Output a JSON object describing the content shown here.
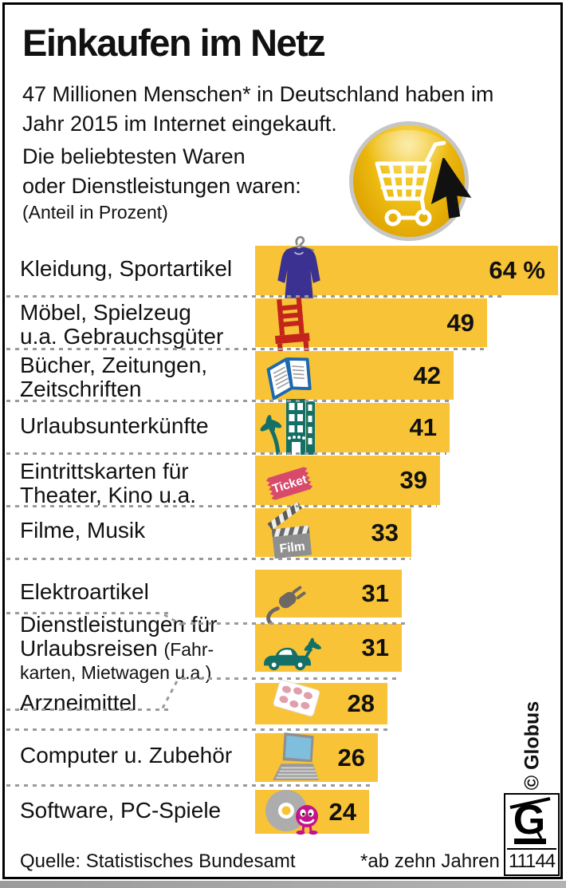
{
  "palette": {
    "bar_yellow": "#F8C337",
    "dotted_gray": "#9A9A9A",
    "frame_black": "#000000",
    "badge_gold": "#E5AE00",
    "badge_ring_gray": "#C6C6C6",
    "shirt_violet": "#3A3191",
    "chair_red": "#C3241B",
    "book_blue": "#1C69B0",
    "travel_teal": "#147067",
    "ticket_pink": "#D84A6B",
    "film_gray": "#8F8F8F",
    "plug_gray": "#6E6862",
    "pill_rose": "#DFA0AC",
    "laptop_blue": "#7FBEDC",
    "cd_gray": "#ADADAD",
    "smiley_magenta": "#C4148C"
  },
  "header": {
    "title": "Einkaufen im Netz",
    "intro_line1": "47 Millionen Menschen* in Deutschland haben im",
    "intro_line2": "Jahr 2015 im Internet eingekauft.",
    "sub_line1": "Die beliebtesten Waren",
    "sub_line2": "oder Dienstleistungen waren:",
    "sub_note": "(Anteil in Prozent)",
    "badge_icon": "shopping-cart-with-cursor"
  },
  "chart_data": {
    "type": "bar",
    "orientation": "horizontal",
    "title": "Einkaufen im Netz",
    "subtitle": "47 Millionen Menschen* in Deutschland haben im Jahr 2015 im Internet eingekauft. Die beliebtesten Waren oder Dienstleistungen waren:",
    "unit": "Anteil in Prozent",
    "categories": [
      "Kleidung, Sportartikel",
      "Möbel, Spielzeug u.a. Gebrauchsgüter",
      "Bücher, Zeitungen, Zeitschriften",
      "Urlaubsunterkünfte",
      "Eintrittskarten für Theater, Kino u.a.",
      "Filme, Musik",
      "Elektroartikel",
      "Dienstleistungen für Urlaubsreisen (Fahrkarten, Mietwagen u.a.)",
      "Arzneimittel",
      "Computer u. Zubehör",
      "Software, PC-Spiele"
    ],
    "values": [
      64,
      49,
      42,
      41,
      39,
      33,
      31,
      31,
      28,
      26,
      24
    ],
    "value_labels": [
      "64 %",
      "49",
      "42",
      "41",
      "39",
      "33",
      "31",
      "31",
      "28",
      "26",
      "24"
    ],
    "xlim": [
      0,
      64
    ],
    "grid": false,
    "legend": false
  },
  "rows": [
    {
      "label_lines": [
        "Kleidung, Sportartikel"
      ],
      "value_label": "64 %",
      "value": 64,
      "icon": "clothing"
    },
    {
      "label_lines": [
        "Möbel, Spielzeug",
        "u.a. Gebrauchsgüter"
      ],
      "value_label": "49",
      "value": 49,
      "icon": "chair"
    },
    {
      "label_lines": [
        "Bücher, Zeitungen,",
        "Zeitschriften"
      ],
      "value_label": "42",
      "value": 42,
      "icon": "book"
    },
    {
      "label_lines": [
        "Urlaubsunterkünfte"
      ],
      "value_label": "41",
      "value": 41,
      "icon": "hotel"
    },
    {
      "label_lines": [
        "Eintrittskarten für",
        "Theater, Kino u.a."
      ],
      "value_label": "39",
      "value": 39,
      "icon": "ticket"
    },
    {
      "label_lines": [
        "Filme, Musik"
      ],
      "value_label": "33",
      "value": 33,
      "icon": "clapperboard"
    },
    {
      "label_lines": [
        "Elektroartikel"
      ],
      "value_label": "31",
      "value": 31,
      "icon": "plug"
    },
    {
      "label_lines": [
        "Dienstleistungen für",
        [
          {
            "t": "Urlaubsreisen ",
            "small": false
          },
          {
            "t": "(Fahr-",
            "small": true
          }
        ],
        [
          {
            "t": "karten, Mietwagen u.a.)",
            "small": true
          }
        ]
      ],
      "value_label": "31",
      "value": 31,
      "icon": "car-palm"
    },
    {
      "label_lines": [
        "Arzneimittel"
      ],
      "value_label": "28",
      "value": 28,
      "icon": "pills"
    },
    {
      "label_lines": [
        "Computer u. Zubehör"
      ],
      "value_label": "26",
      "value": 26,
      "icon": "laptop"
    },
    {
      "label_lines": [
        "Software, PC-Spiele"
      ],
      "value_label": "24",
      "value": 24,
      "icon": "cd-smiley"
    }
  ],
  "footer": {
    "source": "Quelle: Statistisches Bundesamt",
    "note": "*ab zehn Jahren",
    "credit": "© Globus",
    "logo_letter": "G",
    "logo_number": "11144"
  }
}
